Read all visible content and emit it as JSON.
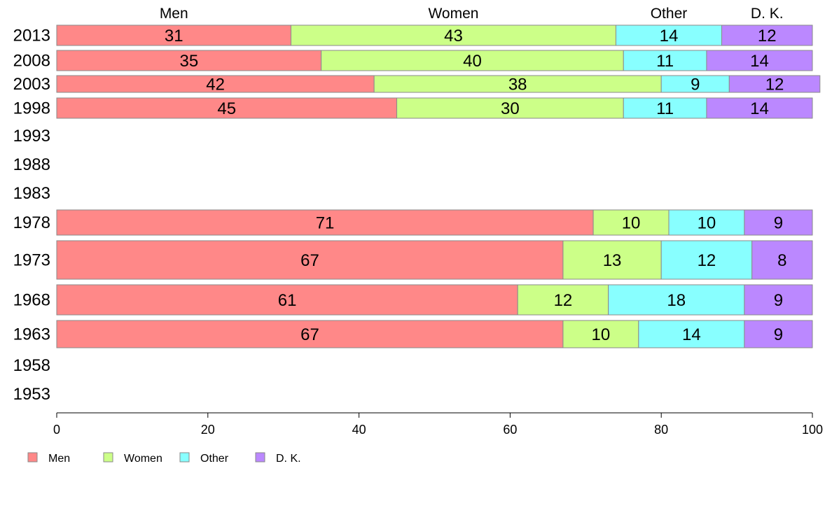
{
  "chart_data": {
    "type": "bar",
    "orientation": "horizontal",
    "stacked": true,
    "title": "",
    "xlabel": "",
    "ylabel": "",
    "xlim": [
      0,
      100
    ],
    "xticks": [
      0,
      20,
      40,
      60,
      80,
      100
    ],
    "grid": false,
    "legend_position": "bottom-left",
    "categories": [
      "2013",
      "2008",
      "2003",
      "1998",
      "1993",
      "1988",
      "1983",
      "1978",
      "1973",
      "1968",
      "1963",
      "1958",
      "1953"
    ],
    "series": [
      {
        "name": "Men",
        "color": "#ff8888",
        "values": [
          31,
          35,
          42,
          45,
          null,
          null,
          null,
          71,
          67,
          61,
          67,
          null,
          null
        ]
      },
      {
        "name": "Women",
        "color": "#ccff88",
        "values": [
          43,
          40,
          38,
          30,
          null,
          null,
          null,
          10,
          13,
          12,
          10,
          null,
          null
        ]
      },
      {
        "name": "Other",
        "color": "#88ffff",
        "values": [
          14,
          11,
          9,
          11,
          null,
          null,
          null,
          10,
          12,
          18,
          14,
          null,
          null
        ]
      },
      {
        "name": "D. K.",
        "color": "#bb88ff",
        "values": [
          12,
          14,
          12,
          14,
          null,
          null,
          null,
          9,
          8,
          9,
          9,
          null,
          null
        ]
      }
    ]
  }
}
